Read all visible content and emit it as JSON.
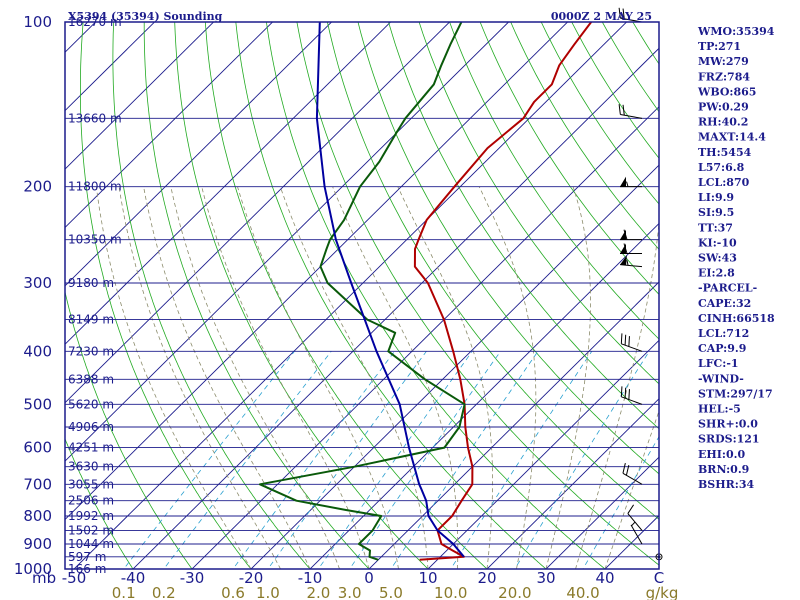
{
  "header": {
    "station": "X5394 (35394) Sounding",
    "time": "0000Z  2 MAY 25"
  },
  "indices": [
    "WMO:35394",
    "TP:271",
    "MW:279",
    "FRZ:784",
    "WBO:865",
    "PW:0.29",
    "RH:40.2",
    "MAXT:14.4",
    "TH:5454",
    "L57:6.8",
    "LCL:870",
    "LI:9.9",
    "SI:9.5",
    "TT:37",
    "KI:-10",
    "SW:43",
    "EI:2.8",
    "-PARCEL-",
    "CAPE:32",
    "CINH:66518",
    "LCL:712",
    "CAP:9.9",
    "LFC:-1",
    "-WIND-",
    "STM:297/17",
    "HEL:-5",
    "SHR+:0.0",
    "SRDS:121",
    "EHI:0.0",
    "BRN:0.9",
    "BSHR:34"
  ],
  "colors": {
    "frame": "#1c1c8c",
    "isobar": "#1c1c8c",
    "isotherm": "#1c1c8c",
    "dry_adiabat": "#22aa22",
    "moist_adiabat": "#8c8c6c",
    "mixing_ratio": "#2aa0d0",
    "temperature": "#b00000",
    "dewpoint": "#0a5a0a",
    "parcel": "#0000a0",
    "wind_barb": "#000000"
  },
  "chart_data": {
    "type": "skew-t log-p",
    "title": "X5394 (35394) Sounding",
    "xlabel": "C",
    "ylabel": "mb",
    "pressure_range_mb": [
      1000,
      100
    ],
    "temperature_range_c": [
      -50,
      50
    ],
    "pressure_ticks": [
      100,
      200,
      300,
      400,
      500,
      600,
      700,
      800,
      900,
      1000
    ],
    "temperature_ticks": [
      -50,
      -40,
      -30,
      -20,
      -10,
      0,
      10,
      20,
      30,
      40,
      "C"
    ],
    "mixing_ratio_ticks": [
      "0.1",
      "0.2",
      "0.6",
      "1.0",
      "2.0",
      "3.0",
      "5.0",
      "10.0",
      "20.0",
      "40.0",
      "g/kg"
    ],
    "height_labels": [
      {
        "p": 100,
        "label": "16270 m"
      },
      {
        "p": 150,
        "label": "13660 m"
      },
      {
        "p": 200,
        "label": "11800 m"
      },
      {
        "p": 250,
        "label": "10350 m"
      },
      {
        "p": 300,
        "label": "9180 m"
      },
      {
        "p": 350,
        "label": "8149 m"
      },
      {
        "p": 400,
        "label": "7230 m"
      },
      {
        "p": 450,
        "label": "6388 m"
      },
      {
        "p": 500,
        "label": "5620 m"
      },
      {
        "p": 550,
        "label": "4906 m"
      },
      {
        "p": 600,
        "label": "4251 m"
      },
      {
        "p": 650,
        "label": "3630 m"
      },
      {
        "p": 700,
        "label": "3055 m"
      },
      {
        "p": 750,
        "label": "2506 m"
      },
      {
        "p": 800,
        "label": "1992 m"
      },
      {
        "p": 850,
        "label": "1502 m"
      },
      {
        "p": 900,
        "label": "1044 m"
      },
      {
        "p": 950,
        "label": "597 m"
      },
      {
        "p": 1000,
        "label": "166 m"
      }
    ],
    "series": [
      {
        "key": "temperature",
        "points": [
          [
            962,
            7
          ],
          [
            950,
            14
          ],
          [
            925,
            11
          ],
          [
            900,
            8
          ],
          [
            850,
            5
          ],
          [
            800,
            5
          ],
          [
            750,
            4
          ],
          [
            700,
            3
          ],
          [
            650,
            0
          ],
          [
            600,
            -4
          ],
          [
            550,
            -8
          ],
          [
            500,
            -12
          ],
          [
            450,
            -17
          ],
          [
            400,
            -23
          ],
          [
            350,
            -30
          ],
          [
            300,
            -39
          ],
          [
            280,
            -44
          ],
          [
            260,
            -47
          ],
          [
            250,
            -48
          ],
          [
            230,
            -50
          ],
          [
            200,
            -51
          ],
          [
            170,
            -52
          ],
          [
            150,
            -51
          ],
          [
            140,
            -52
          ],
          [
            130,
            -52
          ],
          [
            120,
            -54
          ],
          [
            110,
            -55
          ],
          [
            100,
            -56
          ]
        ]
      },
      {
        "key": "dewpoint",
        "points": [
          [
            962,
            0
          ],
          [
            950,
            -2
          ],
          [
            925,
            -3
          ],
          [
            900,
            -6
          ],
          [
            850,
            -6
          ],
          [
            800,
            -7
          ],
          [
            780,
            -14
          ],
          [
            750,
            -24
          ],
          [
            700,
            -33
          ],
          [
            650,
            -20
          ],
          [
            600,
            -8
          ],
          [
            550,
            -9
          ],
          [
            500,
            -12
          ],
          [
            450,
            -23
          ],
          [
            400,
            -34
          ],
          [
            370,
            -36
          ],
          [
            350,
            -43
          ],
          [
            300,
            -56
          ],
          [
            280,
            -60
          ],
          [
            260,
            -62
          ],
          [
            250,
            -63
          ],
          [
            230,
            -64
          ],
          [
            200,
            -67
          ],
          [
            180,
            -68
          ],
          [
            160,
            -70
          ],
          [
            150,
            -71
          ],
          [
            130,
            -72
          ],
          [
            120,
            -74
          ],
          [
            110,
            -76
          ],
          [
            100,
            -78
          ]
        ]
      },
      {
        "key": "parcel",
        "points": [
          [
            950,
            14
          ],
          [
            900,
            10
          ],
          [
            850,
            5
          ],
          [
            800,
            1
          ],
          [
            750,
            -2
          ],
          [
            712,
            -5
          ],
          [
            700,
            -6
          ],
          [
            600,
            -14
          ],
          [
            500,
            -23
          ],
          [
            400,
            -36
          ],
          [
            300,
            -52
          ],
          [
            250,
            -62
          ],
          [
            200,
            -73
          ],
          [
            150,
            -86
          ],
          [
            100,
            -102
          ]
        ]
      }
    ],
    "wind_barbs": [
      {
        "p": 100,
        "dir": 280,
        "spd": 20
      },
      {
        "p": 150,
        "dir": 280,
        "spd": 20
      },
      {
        "p": 200,
        "dir": 270,
        "spd": 55
      },
      {
        "p": 250,
        "dir": 270,
        "spd": 60
      },
      {
        "p": 265,
        "dir": 270,
        "spd": 60
      },
      {
        "p": 280,
        "dir": 275,
        "spd": 55
      },
      {
        "p": 400,
        "dir": 290,
        "spd": 30
      },
      {
        "p": 500,
        "dir": 290,
        "spd": 30
      },
      {
        "p": 700,
        "dir": 300,
        "spd": 20
      },
      {
        "p": 850,
        "dir": 320,
        "spd": 10
      },
      {
        "p": 900,
        "dir": 330,
        "spd": 5
      },
      {
        "p": 950,
        "dir": 0,
        "spd": 0
      }
    ]
  }
}
